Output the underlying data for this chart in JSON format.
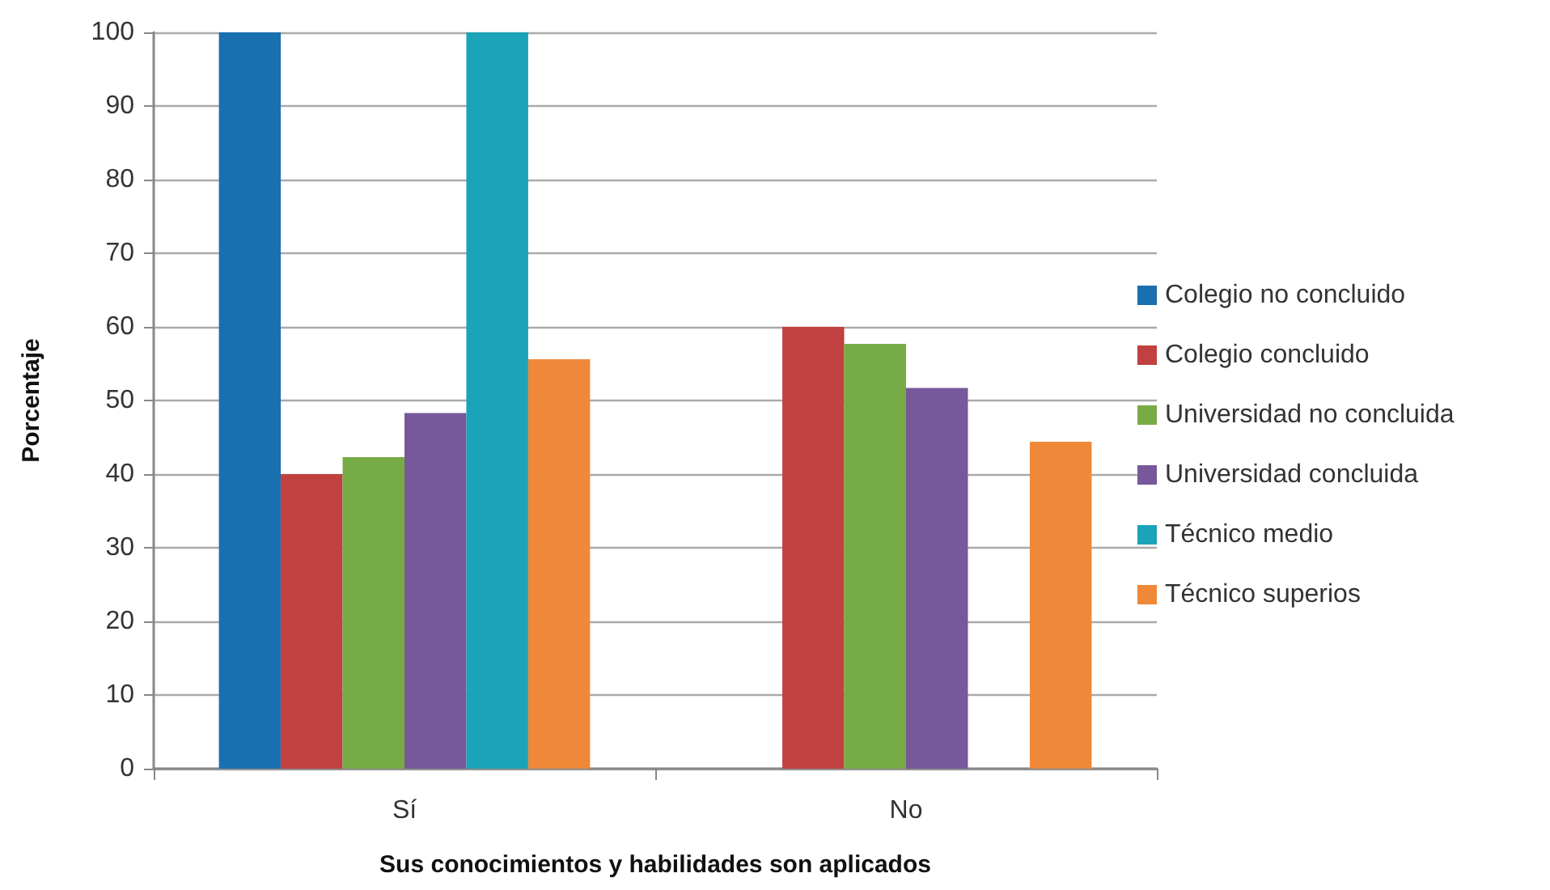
{
  "chart_data": {
    "type": "bar",
    "xlabel": "Sus conocimientos y habilidades son aplicados",
    "ylabel": "Porcentaje",
    "categories": [
      "Sí",
      "No"
    ],
    "series": [
      {
        "name": "Colegio no concluido",
        "color": "#1a6faf",
        "values": [
          100,
          0
        ]
      },
      {
        "name": "Colegio concluido",
        "color": "#c0413f",
        "values": [
          40,
          60
        ]
      },
      {
        "name": "Universidad no concluida",
        "color": "#77ab45",
        "values": [
          42.3,
          57.7
        ]
      },
      {
        "name": "Universidad concluida",
        "color": "#77589a",
        "values": [
          48.3,
          51.7
        ]
      },
      {
        "name": "Técnico medio",
        "color": "#1ba3b9",
        "values": [
          100,
          0
        ]
      },
      {
        "name": "Técnico superios",
        "color": "#f0883a",
        "values": [
          55.6,
          44.4
        ]
      }
    ],
    "ylim": [
      0,
      100
    ],
    "yticks": [
      0,
      10,
      20,
      30,
      40,
      50,
      60,
      70,
      80,
      90,
      100
    ],
    "grid": "y",
    "legend": "right"
  }
}
